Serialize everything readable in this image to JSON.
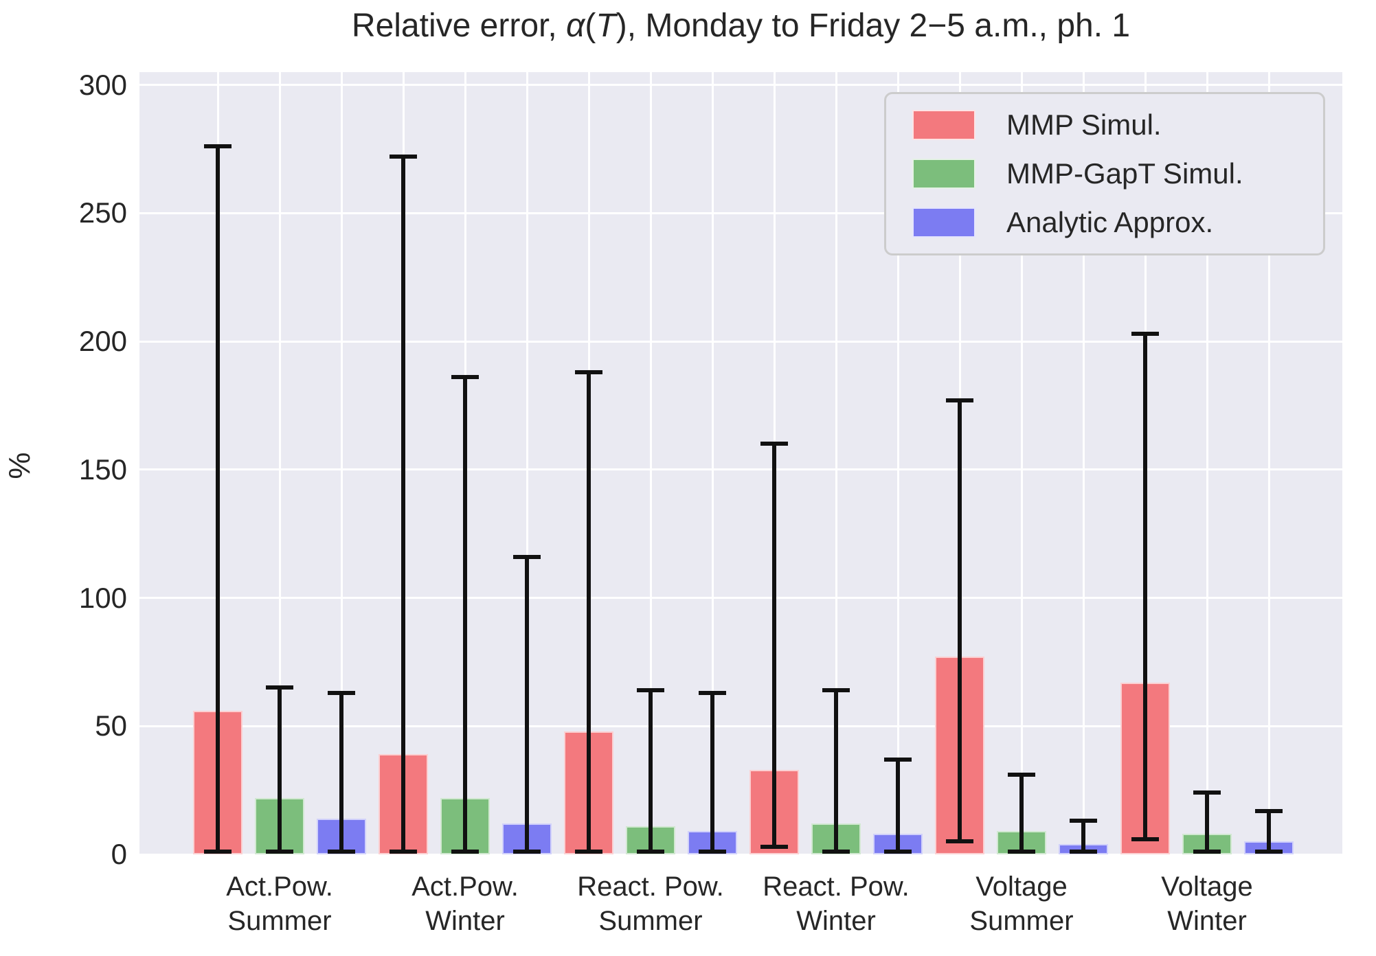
{
  "chart_data": {
    "type": "bar",
    "title": {
      "full": "Relative error, α(T), Monday to Friday 2−5 a.m., ph. 1",
      "prefix": "Relative error, ",
      "alpha": "α",
      "paren_open": "(",
      "variable": "T",
      "paren_close": ")",
      "suffix": ", Monday to Friday 2−5 a.m., ph. 1"
    },
    "ylabel": "%",
    "ylim": [
      0,
      305
    ],
    "yticks": [
      0,
      50,
      100,
      150,
      200,
      250,
      300
    ],
    "grid": true,
    "background_color": "#EAEAF2",
    "grid_color": "#FFFFFF",
    "errorbar_color": "#111111",
    "text_color": "#262626",
    "legend_position": "upper right",
    "categories": [
      {
        "top": "Act.Pow.",
        "bottom": "Summer"
      },
      {
        "top": "Act.Pow.",
        "bottom": "Winter"
      },
      {
        "top": "React. Pow.",
        "bottom": "Summer"
      },
      {
        "top": "React. Pow.",
        "bottom": "Winter"
      },
      {
        "top": "Voltage",
        "bottom": "Summer"
      },
      {
        "top": "Voltage",
        "bottom": "Winter"
      }
    ],
    "series": [
      {
        "name": "MMP Simul.",
        "color": "#F3797E",
        "values": [
          56,
          39,
          48,
          33,
          77,
          67
        ],
        "err_min": [
          1,
          1,
          1,
          3,
          5,
          6
        ],
        "err_max": [
          276,
          272,
          188,
          160,
          177,
          203
        ]
      },
      {
        "name": "MMP-GapT Simul.",
        "color": "#7CBE7C",
        "values": [
          22,
          22,
          11,
          12,
          9,
          8
        ],
        "err_min": [
          1,
          1,
          1,
          1,
          1,
          1
        ],
        "err_max": [
          65,
          186,
          64,
          64,
          31,
          24
        ]
      },
      {
        "name": "Analytic Approx.",
        "color": "#7C7CF2",
        "values": [
          14,
          12,
          9,
          8,
          4,
          5
        ],
        "err_min": [
          1,
          1,
          1,
          1,
          1,
          1
        ],
        "err_max": [
          63,
          116,
          63,
          37,
          13,
          17
        ]
      }
    ]
  }
}
